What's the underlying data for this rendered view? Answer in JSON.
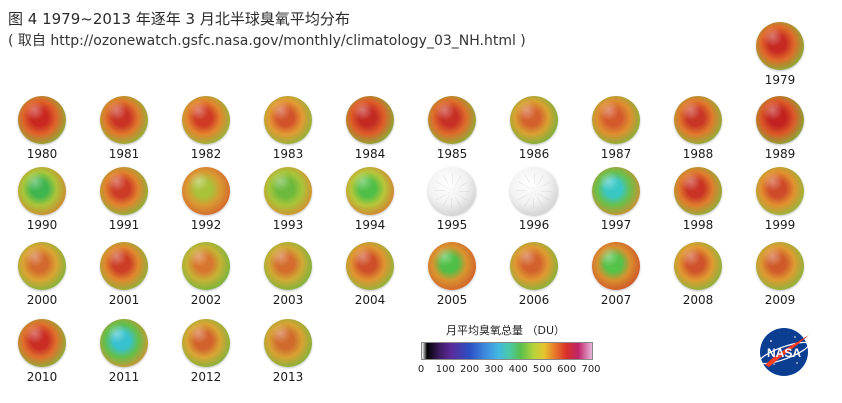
{
  "header": {
    "title": "图 4 1979~2013 年逐年 3 月北半球臭氧平均分布",
    "subtitle": "( 取自 http://ozonewatch.gsfc.nasa.gov/monthly/climatology_03_NH.html )"
  },
  "globes": [
    {
      "year": "1979",
      "c1": "#c62a22",
      "c2": "#e06a2a",
      "c3": "#7fb43a"
    },
    {
      "year": "1980",
      "c1": "#c8281f",
      "c2": "#e0642a",
      "c3": "#86b23a"
    },
    {
      "year": "1981",
      "c1": "#c93325",
      "c2": "#e07a2c",
      "c3": "#8bb83c"
    },
    {
      "year": "1982",
      "c1": "#cf3a24",
      "c2": "#e3862e",
      "c3": "#8fba3c"
    },
    {
      "year": "1983",
      "c1": "#d2532a",
      "c2": "#e39a33",
      "c3": "#86b53b"
    },
    {
      "year": "1984",
      "c1": "#c22a22",
      "c2": "#de5f29",
      "c3": "#7fb43a"
    },
    {
      "year": "1985",
      "c1": "#c73025",
      "c2": "#de6e2b",
      "c3": "#86b33b"
    },
    {
      "year": "1986",
      "c1": "#d4612c",
      "c2": "#d9a232",
      "c3": "#6fb33c"
    },
    {
      "year": "1987",
      "c1": "#d45a2c",
      "c2": "#df8f30",
      "c3": "#7eb43a"
    },
    {
      "year": "1988",
      "c1": "#c93525",
      "c2": "#e07a2d",
      "c3": "#87b53b"
    },
    {
      "year": "1989",
      "c1": "#c1221f",
      "c2": "#dc5a28",
      "c3": "#7cb13a"
    },
    {
      "year": "1990",
      "c1": "#3fb54f",
      "c2": "#a9c63a",
      "c3": "#d3832d"
    },
    {
      "year": "1991",
      "c1": "#cc3b26",
      "c2": "#e1842e",
      "c3": "#84b43b"
    },
    {
      "year": "1992",
      "c1": "#a8c23a",
      "c2": "#d99a33",
      "c3": "#d4622c"
    },
    {
      "year": "1993",
      "c1": "#6cb93d",
      "c2": "#a8c53a",
      "c3": "#d98a2f"
    },
    {
      "year": "1994",
      "c1": "#4fbf48",
      "c2": "#b6c73a",
      "c3": "#d77a2e"
    },
    {
      "year": "1995",
      "blank": true
    },
    {
      "year": "1996",
      "blank": true
    },
    {
      "year": "1997",
      "c1": "#39c7c4",
      "c2": "#6bbf4a",
      "c3": "#d68b2f"
    },
    {
      "year": "1998",
      "c1": "#c93224",
      "c2": "#e07c2d",
      "c3": "#86b53b"
    },
    {
      "year": "1999",
      "c1": "#cf4a28",
      "c2": "#e2912f",
      "c3": "#8dba3c"
    },
    {
      "year": "2000",
      "c1": "#d36a2d",
      "c2": "#dba533",
      "c3": "#78b53b"
    },
    {
      "year": "2001",
      "c1": "#cc3e26",
      "c2": "#e0892e",
      "c3": "#86b53b"
    },
    {
      "year": "2002",
      "c1": "#d8762e",
      "c2": "#c6b336",
      "c3": "#6db43c"
    },
    {
      "year": "2003",
      "c1": "#d56c2d",
      "c2": "#cfab35",
      "c3": "#74b43c"
    },
    {
      "year": "2004",
      "c1": "#cf4f29",
      "c2": "#e09531",
      "c3": "#86b73b"
    },
    {
      "year": "2005",
      "c1": "#4fbf48",
      "c2": "#d9952f",
      "c3": "#d25c2b"
    },
    {
      "year": "2006",
      "c1": "#d3612c",
      "c2": "#df9a32",
      "c3": "#7bb63b"
    },
    {
      "year": "2007",
      "c1": "#55c24a",
      "c2": "#d8902f",
      "c3": "#cf4f29"
    },
    {
      "year": "2008",
      "c1": "#d0522a",
      "c2": "#e19a32",
      "c3": "#82b63b"
    },
    {
      "year": "2009",
      "c1": "#d05a2a",
      "c2": "#de9b32",
      "c3": "#82b63b"
    },
    {
      "year": "2010",
      "c1": "#c92d24",
      "c2": "#df702c",
      "c3": "#84b53b"
    },
    {
      "year": "2011",
      "c1": "#38c2d0",
      "c2": "#63bf4b",
      "c3": "#d8902f"
    },
    {
      "year": "2012",
      "c1": "#d2612c",
      "c2": "#d9a534",
      "c3": "#79b53b"
    },
    {
      "year": "2013",
      "c1": "#d06a2d",
      "c2": "#d8a233",
      "c3": "#7ab43b"
    }
  ],
  "legend": {
    "title": "月平均臭氧总量 （DU）",
    "ticks": [
      "0",
      "100",
      "200",
      "300",
      "400",
      "500",
      "600",
      "700"
    ]
  },
  "logo": {
    "text": "NASA",
    "blue": "#0b3d91",
    "red": "#fc3d21"
  }
}
